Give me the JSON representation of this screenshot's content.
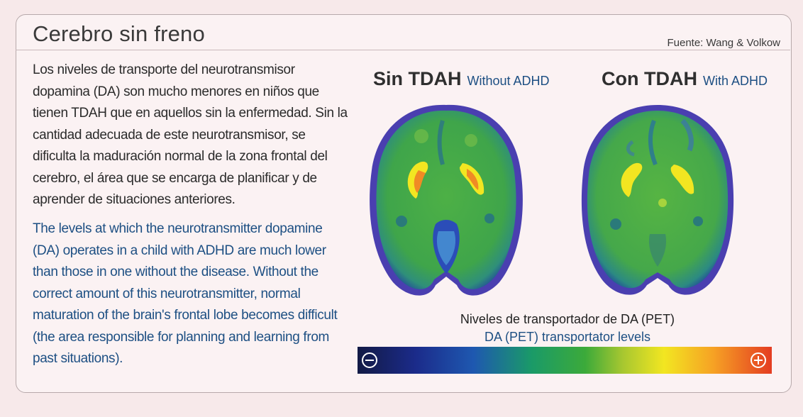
{
  "header": {
    "title": "Cerebro sin freno",
    "source": "Fuente: Wang & Volkow"
  },
  "body": {
    "spanish": "Los niveles de transporte del neurotransmisor dopamina (DA) son mucho menores en niños que tienen TDAH que en aquellos sin la enfermedad. Sin la cantidad adecuada de este neurotransmisor, se dificulta la maduración normal de la zona frontal del cerebro, el área que se encarga de planificar y de aprender de situaciones anteriores.",
    "english": "The levels at which the neurotransmitter dopamine (DA) operates in a child with ADHD are much lower than those in one without the disease. Without the correct amount of this neurotransmitter, normal maturation of the brain's frontal lobe becomes difficult (the area responsible for planning and learning from past situations)."
  },
  "scans": [
    {
      "label_es": "Sin TDAH",
      "label_en": "Without ADHD"
    },
    {
      "label_es": "Con TDAH",
      "label_en": "With ADHD"
    }
  ],
  "legend": {
    "label_es": "Niveles de transportador de DA (PET)",
    "label_en": "DA (PET) transportator levels",
    "min_symbol": "minus-circle-icon",
    "max_symbol": "plus-circle-icon",
    "colors": [
      "#121a45",
      "#1b2b8a",
      "#1e58b0",
      "#1a9a68",
      "#3caa3a",
      "#a7c730",
      "#f2e621",
      "#f6a124",
      "#e43c22"
    ]
  }
}
